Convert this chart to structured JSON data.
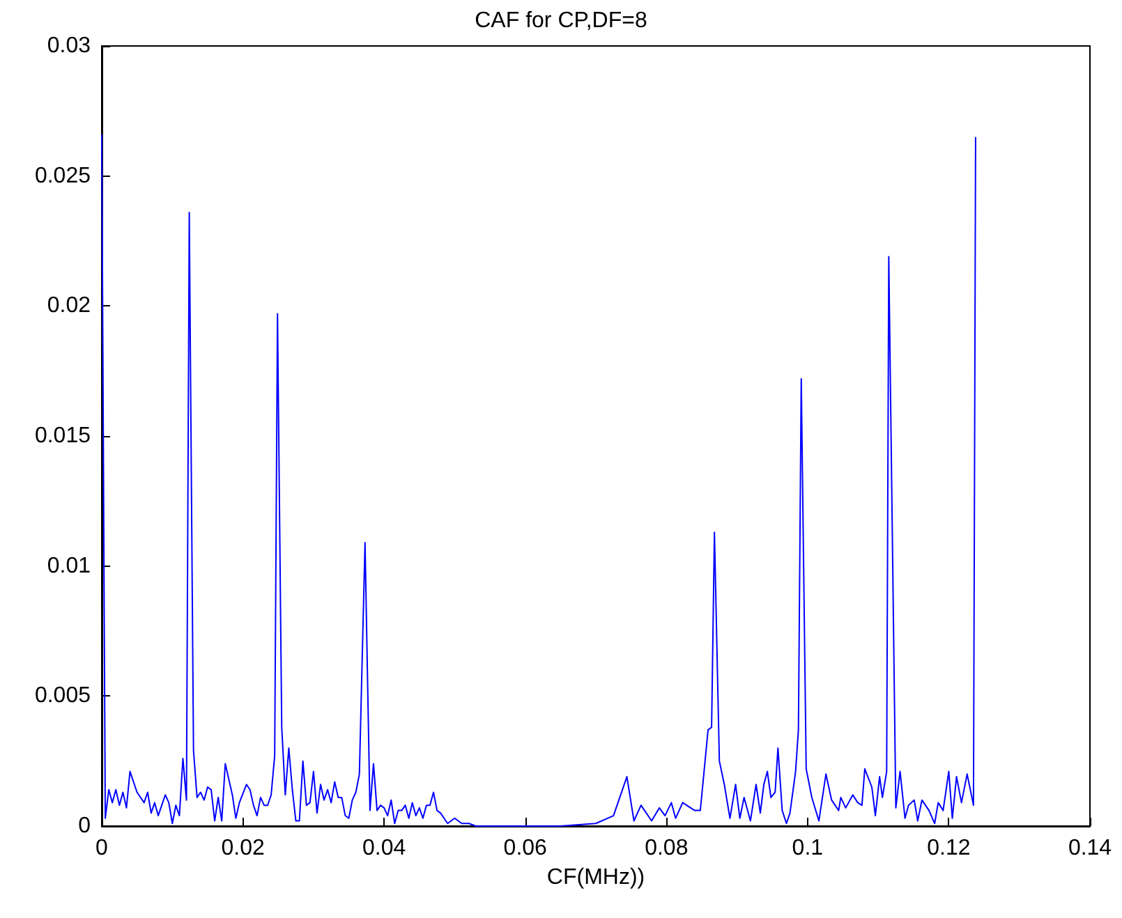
{
  "chart_data": {
    "type": "line",
    "title": "CAF for CP,DF=8",
    "xlabel": "CF(MHz))",
    "xlim": [
      0,
      0.14
    ],
    "xticks": [
      0,
      0.02,
      0.04,
      0.06,
      0.08,
      0.1,
      0.12,
      0.14
    ],
    "ylim": [
      0,
      0.03
    ],
    "yticks": [
      0,
      0.005,
      0.01,
      0.015,
      0.02,
      0.025,
      0.03
    ],
    "grid": false,
    "marker": "none",
    "line_style": "solid",
    "series": [
      {
        "color": "#0000ff",
        "x": [
          0,
          0.0005,
          0.001,
          0.0015,
          0.002,
          0.0025,
          0.003,
          0.0035,
          0.004,
          0.005,
          0.006,
          0.0065,
          0.007,
          0.0075,
          0.008,
          0.009,
          0.0095,
          0.01,
          0.0105,
          0.011,
          0.0115,
          0.012,
          0.0124,
          0.013,
          0.0135,
          0.014,
          0.0145,
          0.015,
          0.0155,
          0.016,
          0.0165,
          0.017,
          0.0175,
          0.0185,
          0.019,
          0.0195,
          0.0205,
          0.021,
          0.0215,
          0.022,
          0.0225,
          0.023,
          0.0235,
          0.024,
          0.0245,
          0.0249,
          0.0255,
          0.026,
          0.0265,
          0.027,
          0.0275,
          0.028,
          0.0285,
          0.029,
          0.0295,
          0.03,
          0.0305,
          0.031,
          0.0315,
          0.032,
          0.0325,
          0.033,
          0.0335,
          0.034,
          0.0345,
          0.035,
          0.0355,
          0.036,
          0.0365,
          0.0373,
          0.038,
          0.0385,
          0.039,
          0.0395,
          0.04,
          0.0405,
          0.041,
          0.0415,
          0.042,
          0.0425,
          0.043,
          0.0435,
          0.044,
          0.0445,
          0.045,
          0.0455,
          0.046,
          0.0465,
          0.047,
          0.0475,
          0.048,
          0.049,
          0.05,
          0.051,
          0.052,
          0.053,
          0.055,
          0.06,
          0.065,
          0.07,
          0.0725,
          0.0744,
          0.0754,
          0.0764,
          0.0779,
          0.079,
          0.0798,
          0.0807,
          0.0813,
          0.0823,
          0.084,
          0.0848,
          0.0859,
          0.0864,
          0.0868,
          0.0875,
          0.0882,
          0.089,
          0.0898,
          0.0904,
          0.091,
          0.0919,
          0.0927,
          0.0933,
          0.0938,
          0.0943,
          0.0948,
          0.0954,
          0.0958,
          0.0964,
          0.097,
          0.0975,
          0.0983,
          0.0987,
          0.0991,
          0.0998,
          0.1006,
          0.1016,
          0.1026,
          0.1034,
          0.1044,
          0.1047,
          0.1054,
          0.1064,
          0.1071,
          0.1077,
          0.1081,
          0.1091,
          0.1096,
          0.1102,
          0.1106,
          0.1112,
          0.1115,
          0.1125,
          0.1131,
          0.1138,
          0.1143,
          0.1151,
          0.1156,
          0.1162,
          0.1172,
          0.118,
          0.1185,
          0.1192,
          0.12,
          0.1205,
          0.1211,
          0.1218,
          0.1226,
          0.1235,
          0.1238
        ],
        "values": [
          0.0266,
          0.0003,
          0.0014,
          0.0009,
          0.0014,
          0.0008,
          0.0013,
          0.0007,
          0.0021,
          0.0013,
          0.0009,
          0.0013,
          0.0005,
          0.0009,
          0.0004,
          0.0012,
          0.0009,
          0.0001,
          0.0008,
          0.0004,
          0.0026,
          0.001,
          0.0236,
          0.0029,
          0.0011,
          0.0013,
          0.001,
          0.0015,
          0.0014,
          0.0002,
          0.0011,
          0.0002,
          0.0024,
          0.0012,
          0.0003,
          0.0009,
          0.0016,
          0.0014,
          0.0008,
          0.0004,
          0.0011,
          0.0008,
          0.0008,
          0.0012,
          0.0027,
          0.0197,
          0.0038,
          0.0012,
          0.003,
          0.0014,
          0.0002,
          0.0002,
          0.0025,
          0.0008,
          0.0009,
          0.0021,
          0.0005,
          0.0016,
          0.001,
          0.0014,
          0.0009,
          0.0017,
          0.0011,
          0.0011,
          0.0004,
          0.0003,
          0.001,
          0.0013,
          0.002,
          0.0109,
          0.0006,
          0.0024,
          0.0006,
          0.0008,
          0.0007,
          0.0004,
          0.001,
          0.0001,
          0.0006,
          0.0006,
          0.0008,
          0.0003,
          0.0009,
          0.0004,
          0.0007,
          0.0003,
          0.0008,
          0.0008,
          0.0013,
          0.0006,
          0.0005,
          0.0001,
          0.0003,
          0.0001,
          0.0001,
          0,
          0,
          0,
          0,
          0.0001,
          0.0004,
          0.0019,
          0.0002,
          0.0008,
          0.0002,
          0.0007,
          0.0004,
          0.0009,
          0.0003,
          0.0009,
          0.0006,
          0.0006,
          0.0037,
          0.0038,
          0.0113,
          0.0025,
          0.0016,
          0.0003,
          0.0016,
          0.0003,
          0.0011,
          0.0002,
          0.0016,
          0.0005,
          0.0016,
          0.0021,
          0.0011,
          0.0013,
          0.003,
          0.0006,
          0.0001,
          0.0005,
          0.0021,
          0.0037,
          0.0172,
          0.0022,
          0.0011,
          0.0002,
          0.002,
          0.001,
          0.0006,
          0.0011,
          0.0007,
          0.0012,
          0.0009,
          0.0008,
          0.0022,
          0.0015,
          0.0004,
          0.0019,
          0.0011,
          0.0021,
          0.0219,
          0.0007,
          0.0021,
          0.0003,
          0.0008,
          0.001,
          0.0002,
          0.001,
          0.0006,
          0.0001,
          0.0009,
          0.0006,
          0.0021,
          0.0003,
          0.0019,
          0.0009,
          0.002,
          0.0008,
          0.0265
        ]
      }
    ]
  }
}
